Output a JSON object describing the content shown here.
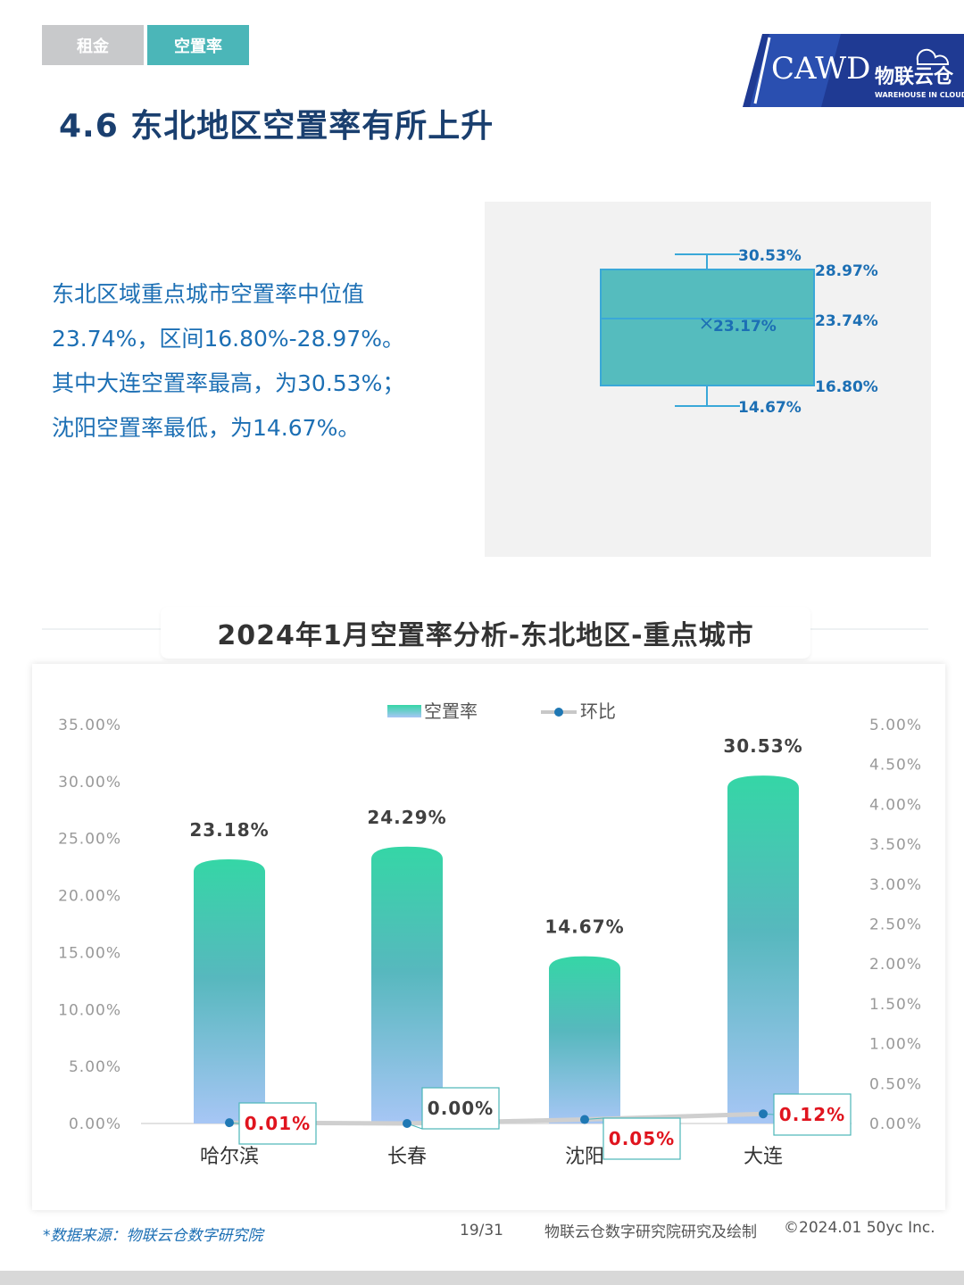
{
  "tabs": [
    {
      "label": "租金",
      "active": false
    },
    {
      "label": "空置率",
      "active": true
    }
  ],
  "logo": {
    "text": "CAWD",
    "brand": "物联云仓",
    "brand_sub": "WAREHOUSE IN CLOUD"
  },
  "title": "4.6 东北地区空置率有所上升",
  "summary": [
    "东北区域重点城市空置率中位值",
    "23.74%，区间16.80%-28.97%。",
    "其中大连空置率最高，为30.53%；",
    "沈阳空置率最低，为14.67%。"
  ],
  "boxplot": {
    "max": 30.53,
    "q3": 28.97,
    "median": 23.74,
    "mean": 23.17,
    "q1": 16.8,
    "min": 14.67,
    "labels": {
      "max": "30.53%",
      "q3": "28.97%",
      "median": "23.74%",
      "mean": "23.17%",
      "q1": "16.80%",
      "min": "14.67%"
    }
  },
  "chart_title": "2024年1月空置率分析-东北地区-重点城市",
  "chart_data": {
    "type": "bar",
    "categories": [
      "哈尔滨",
      "长春",
      "沈阳",
      "大连"
    ],
    "series": [
      {
        "name": "空置率",
        "type": "bar",
        "axis": "left",
        "values": [
          23.18,
          24.29,
          14.67,
          30.53
        ],
        "labels": [
          "23.18%",
          "24.29%",
          "14.67%",
          "30.53%"
        ]
      },
      {
        "name": "环比",
        "type": "line",
        "axis": "right",
        "values": [
          0.01,
          0.0,
          0.05,
          0.12
        ],
        "labels": [
          "0.01%",
          "0.00%",
          "0.05%",
          "0.12%"
        ]
      }
    ],
    "ylim_left": [
      0,
      35
    ],
    "yticks_left": [
      "0.00%",
      "5.00%",
      "10.00%",
      "15.00%",
      "20.00%",
      "25.00%",
      "30.00%",
      "35.00%"
    ],
    "ylim_right": [
      0,
      5
    ],
    "yticks_right": [
      "0.00%",
      "0.50%",
      "1.00%",
      "1.50%",
      "2.00%",
      "2.50%",
      "3.00%",
      "3.50%",
      "4.00%",
      "4.50%",
      "5.00%"
    ],
    "legend": "top-center",
    "grid": false
  },
  "colors": {
    "title": "#1a3f6f",
    "accent": "#4bb6b8",
    "text_blue": "#1c6fb4",
    "bar_top": "#35d6a6",
    "bar_bottom": "#a7c6f5",
    "red": "#e0141e"
  },
  "footer": {
    "source": "*数据来源：物联云仓数字研究院",
    "page": "19/31",
    "credit": "物联云仓数字研究院研究及绘制",
    "copyright": "©2024.01 50yc Inc."
  }
}
